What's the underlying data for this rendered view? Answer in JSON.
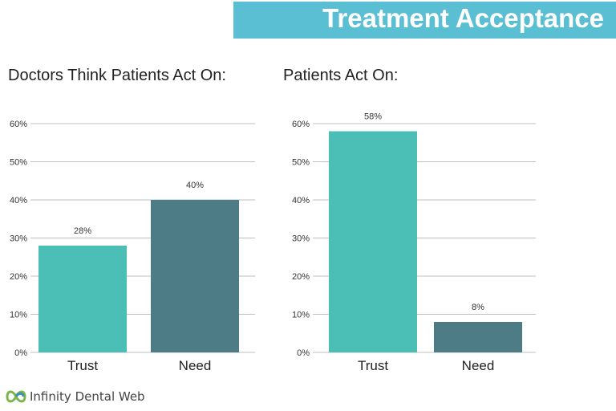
{
  "header": {
    "title": "Treatment Acceptance"
  },
  "colors": {
    "banner": "#5bbfd3",
    "trust": "#4bbfb5",
    "need": "#4e7c86",
    "grid": "#bfbfbf"
  },
  "logo": {
    "text": "Infinity Dental Web",
    "icon": "infinity-leaf-icon"
  },
  "chart_data": [
    {
      "type": "bar",
      "title": "Doctors Think Patients Act On:",
      "categories": [
        "Trust",
        "Need"
      ],
      "values": [
        28,
        40
      ],
      "value_labels": [
        "28%",
        "40%"
      ],
      "yticks": [
        "0%",
        "10%",
        "20%",
        "30%",
        "40%",
        "50%",
        "60%"
      ],
      "ylim": [
        0,
        60
      ],
      "grid": true
    },
    {
      "type": "bar",
      "title": "Patients Act On:",
      "categories": [
        "Trust",
        "Need"
      ],
      "values": [
        58,
        8
      ],
      "value_labels": [
        "58%",
        "8%"
      ],
      "yticks": [
        "0%",
        "10%",
        "20%",
        "30%",
        "40%",
        "50%",
        "60%"
      ],
      "ylim": [
        0,
        60
      ],
      "grid": true
    }
  ]
}
